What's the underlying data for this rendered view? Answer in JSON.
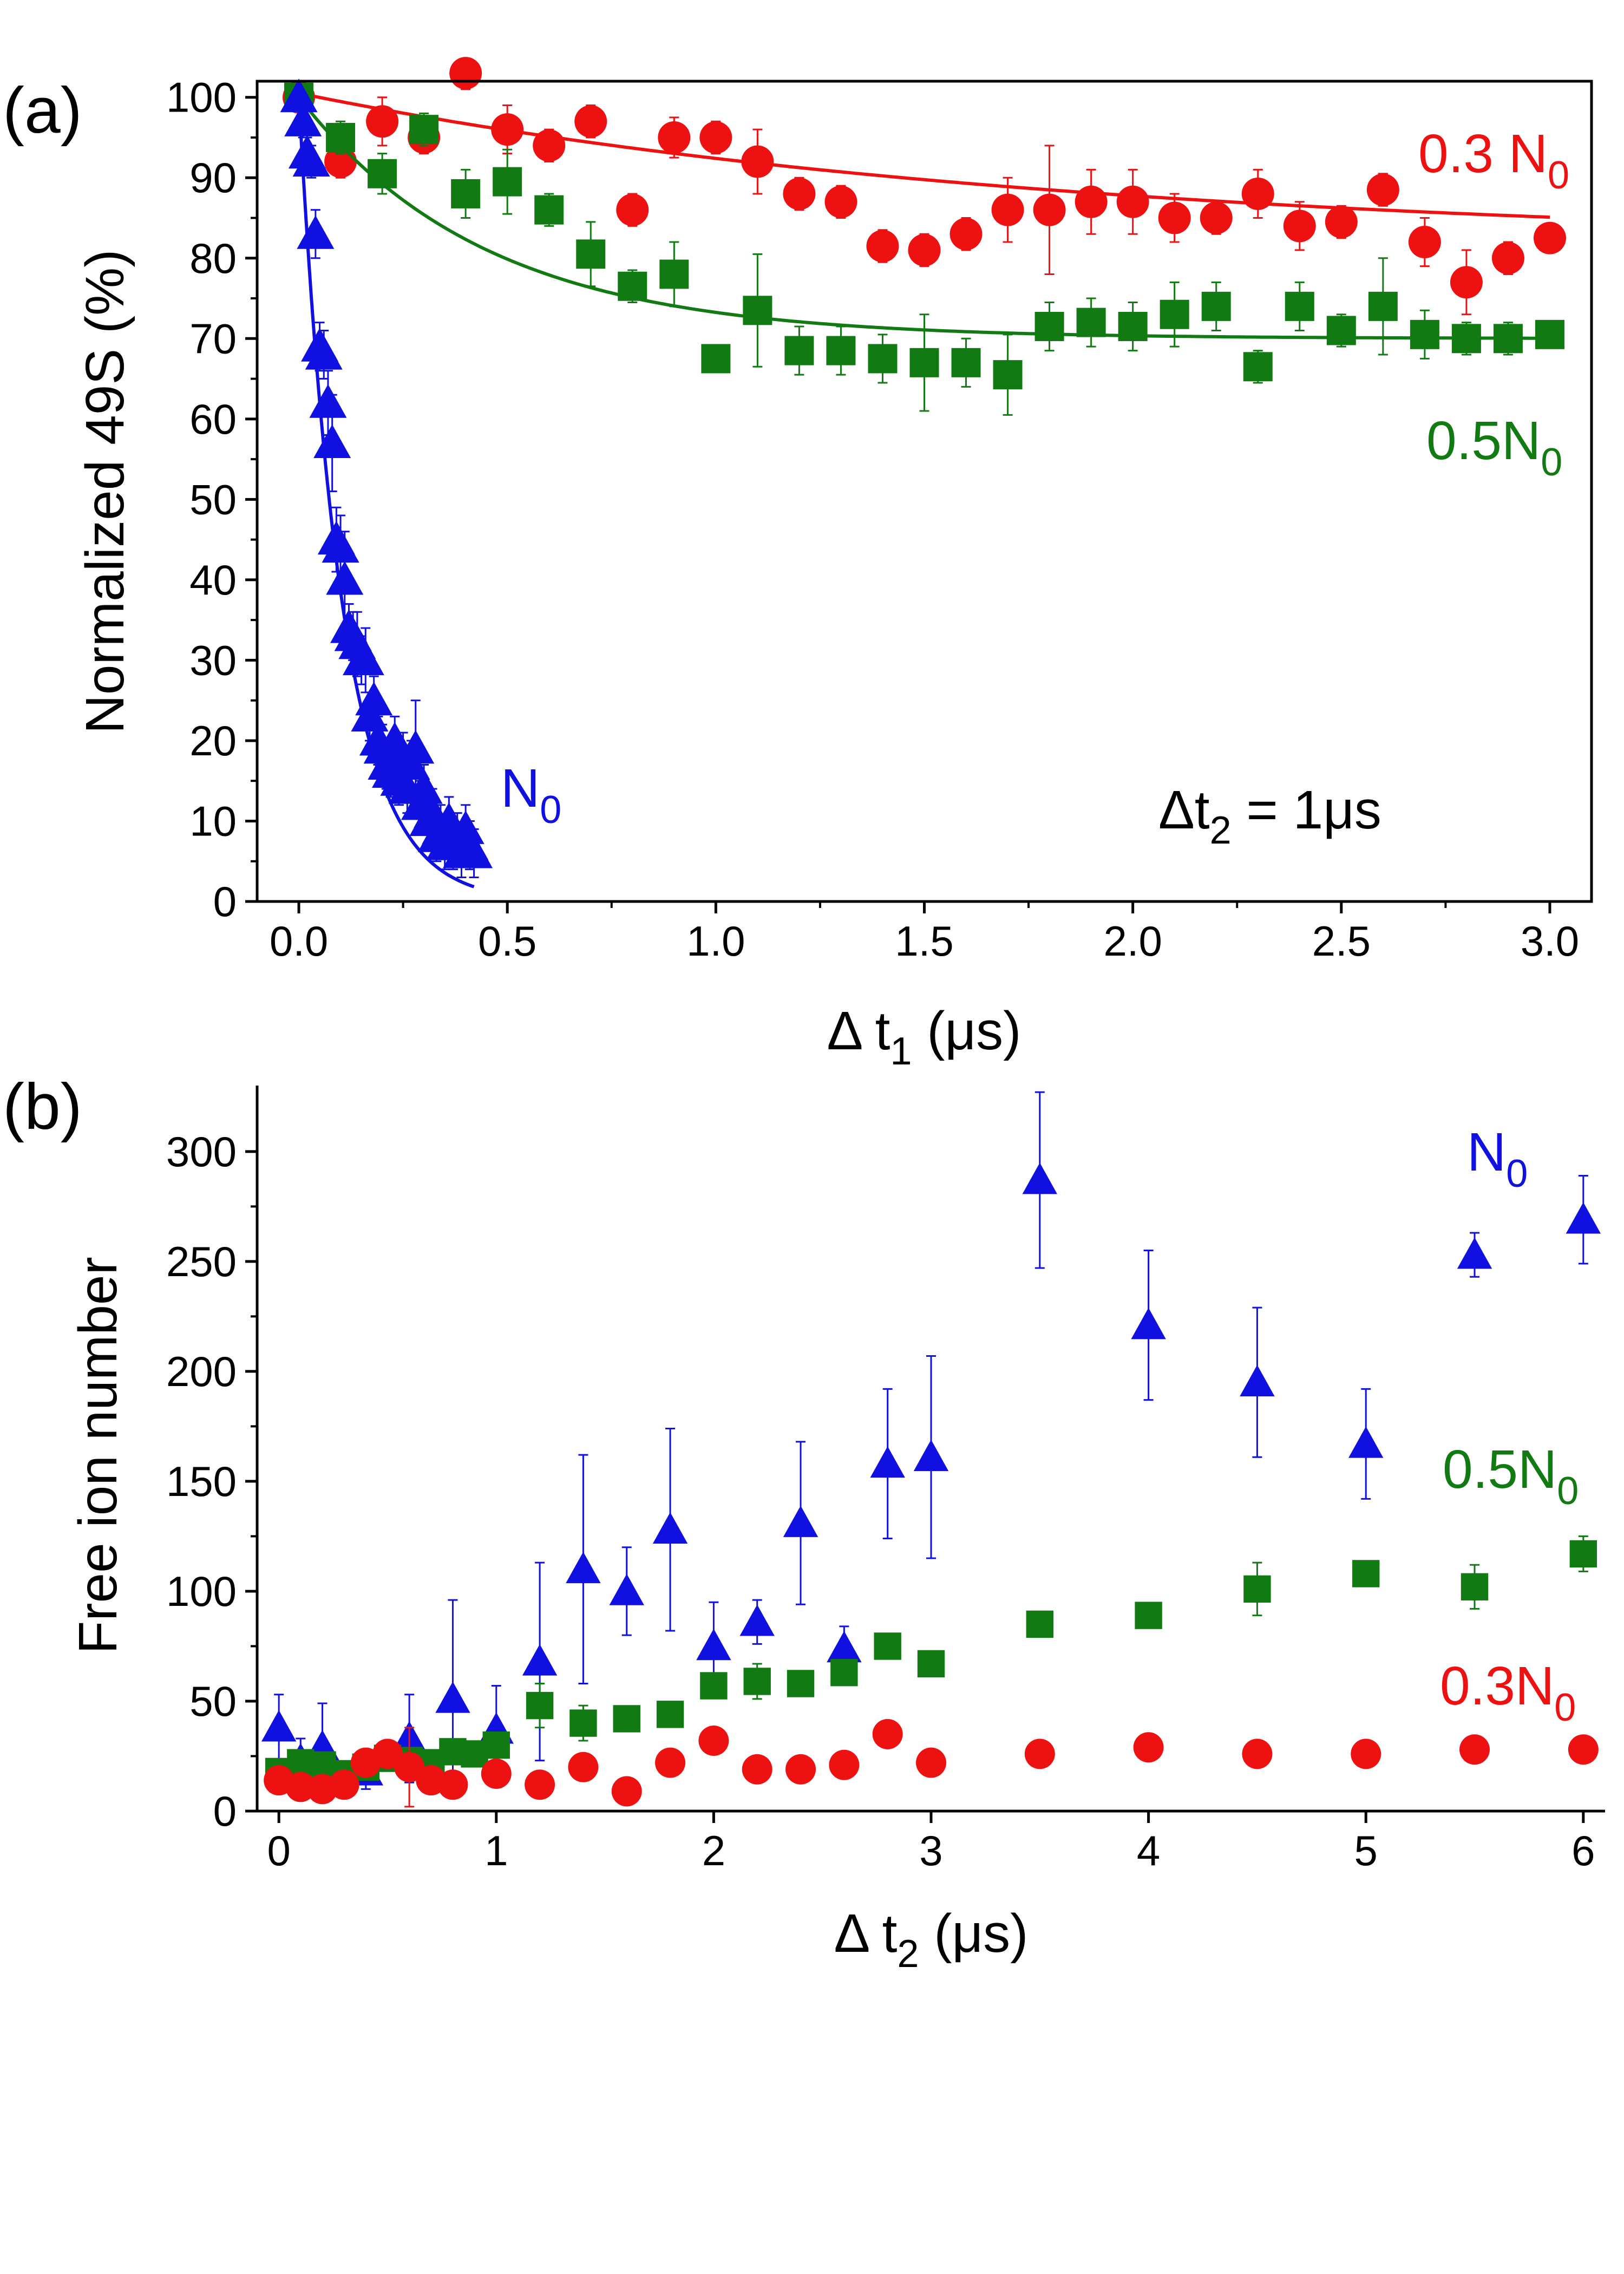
{
  "figure": {
    "panel_count": 2
  },
  "chart_data": [
    {
      "type": "scatter",
      "panel_label": "(a)",
      "xlabel_prefix": "Δ t",
      "xlabel_sub": "1",
      "xlabel_suffix": " (μs)",
      "ylabel": "Normalized 49S (%)",
      "xlim": [
        -0.1,
        3.1
      ],
      "ylim": [
        0,
        102
      ],
      "xticks": [
        0.0,
        0.5,
        1.0,
        1.5,
        2.0,
        2.5,
        3.0
      ],
      "xtick_labels": [
        "0.0",
        "0.5",
        "1.0",
        "1.5",
        "2.0",
        "2.5",
        "3.0"
      ],
      "yticks": [
        0,
        10,
        20,
        30,
        40,
        50,
        60,
        70,
        80,
        90,
        100
      ],
      "ytick_labels": [
        "0",
        "10",
        "20",
        "30",
        "40",
        "50",
        "60",
        "70",
        "80",
        "90",
        "100"
      ],
      "annotation": {
        "prefix": "Δt",
        "sub": "2",
        "suffix": " = 1μs"
      },
      "series": [
        {
          "name": "0.3 N0",
          "label_main": "0.3 N",
          "label_sub": "0",
          "color": "#ee1111",
          "marker": "circle",
          "x": [
            0.0,
            0.1,
            0.2,
            0.3,
            0.4,
            0.5,
            0.6,
            0.7,
            0.8,
            0.9,
            1.0,
            1.1,
            1.2,
            1.3,
            1.4,
            1.5,
            1.6,
            1.7,
            1.8,
            1.9,
            2.0,
            2.1,
            2.2,
            2.3,
            2.4,
            2.5,
            2.6,
            2.7,
            2.8,
            2.9,
            3.0
          ],
          "y": [
            100,
            92,
            97,
            95,
            103,
            96,
            94,
            97,
            86,
            95,
            95,
            92,
            88,
            87,
            81.5,
            81,
            83,
            86,
            86,
            87,
            87,
            85,
            85,
            88,
            84,
            84.5,
            88.5,
            82,
            77,
            80,
            82.5
          ],
          "err": [
            1,
            2,
            3,
            2,
            2,
            3,
            2,
            2,
            2,
            2.5,
            2,
            4,
            2,
            2,
            2,
            2,
            2,
            4,
            8,
            4,
            4,
            3,
            2,
            3,
            3,
            2,
            2,
            3,
            4,
            2,
            1
          ],
          "fit": {
            "a": 19,
            "tau": 1.8,
            "c": 81.5
          }
        },
        {
          "name": "0.5N0",
          "label_main": "0.5N",
          "label_sub": "0",
          "color": "#127a12",
          "marker": "square",
          "x": [
            0.0,
            0.1,
            0.2,
            0.3,
            0.4,
            0.5,
            0.6,
            0.7,
            0.8,
            0.9,
            1.0,
            1.1,
            1.2,
            1.3,
            1.4,
            1.5,
            1.6,
            1.7,
            1.8,
            1.9,
            2.0,
            2.1,
            2.2,
            2.3,
            2.4,
            2.5,
            2.6,
            2.7,
            2.8,
            2.9,
            3.0
          ],
          "y": [
            100,
            95,
            90.5,
            96,
            88,
            89.5,
            86,
            80.5,
            76.5,
            78,
            67.5,
            73.5,
            68.5,
            68.5,
            67.5,
            67,
            67,
            65.5,
            71.5,
            72,
            71.5,
            73,
            74,
            66.5,
            74,
            71,
            74,
            70.5,
            70,
            70,
            70.5
          ],
          "err": [
            1,
            2,
            2.5,
            2,
            3,
            4,
            2,
            4,
            2,
            4,
            1.5,
            7,
            3,
            3,
            3,
            6,
            3,
            5,
            3,
            3,
            3,
            4,
            3,
            2,
            3,
            2,
            6,
            3,
            2,
            2,
            1
          ],
          "fit": {
            "a": 30,
            "tau": 0.45,
            "c": 70
          }
        },
        {
          "name": "N0",
          "label_main": "N",
          "label_sub": "0",
          "color": "#1010e0",
          "marker": "triangle",
          "x": [
            0.0,
            0.01,
            0.02,
            0.03,
            0.04,
            0.05,
            0.06,
            0.07,
            0.08,
            0.09,
            0.1,
            0.11,
            0.12,
            0.13,
            0.14,
            0.15,
            0.16,
            0.17,
            0.18,
            0.19,
            0.2,
            0.21,
            0.22,
            0.23,
            0.24,
            0.25,
            0.26,
            0.27,
            0.28,
            0.29,
            0.3,
            0.31,
            0.32,
            0.33,
            0.34,
            0.35,
            0.36,
            0.37,
            0.38,
            0.39,
            0.4,
            0.41,
            0.42
          ],
          "y": [
            100,
            97,
            93,
            92,
            83,
            69,
            68,
            62,
            57,
            45,
            44,
            40,
            34,
            33,
            32,
            30,
            30,
            23,
            25,
            20,
            19,
            17,
            16,
            20,
            15,
            18,
            14,
            17,
            19,
            12,
            14,
            10,
            11,
            8,
            9,
            7,
            10,
            7,
            8,
            6,
            9,
            7,
            6
          ],
          "err": [
            1,
            2,
            2,
            2,
            3,
            3,
            3,
            4,
            6,
            4,
            4,
            6,
            3,
            3,
            4,
            3,
            4,
            3,
            3,
            3,
            3,
            3,
            3,
            3,
            3,
            3,
            3,
            3,
            6,
            3,
            3,
            3,
            3,
            3,
            3,
            3,
            3,
            3,
            3,
            3,
            3,
            3,
            3
          ],
          "fit": {
            "a": 100,
            "tau": 0.105,
            "c": 0
          }
        }
      ]
    },
    {
      "type": "scatter",
      "panel_label": "(b)",
      "xlabel_prefix": "Δ t",
      "xlabel_sub": "2",
      "xlabel_suffix": " (μs)",
      "ylabel": "Free ion number",
      "xlim": [
        -0.1,
        6.1
      ],
      "ylim": [
        0,
        330
      ],
      "xticks": [
        0,
        1,
        2,
        3,
        4,
        5,
        6
      ],
      "xtick_labels": [
        "0",
        "1",
        "2",
        "3",
        "4",
        "5",
        "6"
      ],
      "yticks": [
        0,
        50,
        100,
        150,
        200,
        250,
        300
      ],
      "ytick_labels": [
        "0",
        "50",
        "100",
        "150",
        "200",
        "250",
        "300"
      ],
      "series": [
        {
          "name": "N0",
          "label_main": "N",
          "label_sub": "0",
          "color": "#1010e0",
          "marker": "triangle",
          "x": [
            0.0,
            0.1,
            0.2,
            0.4,
            0.6,
            0.8,
            1.0,
            1.2,
            1.4,
            1.6,
            1.8,
            2.0,
            2.2,
            2.4,
            2.6,
            2.8,
            3.0,
            3.5,
            4.0,
            4.5,
            5.0,
            5.5,
            6.0
          ],
          "y": [
            38,
            23,
            29,
            18,
            33,
            51,
            37,
            68,
            110,
            100,
            128,
            75,
            86,
            131,
            74,
            158,
            161,
            287,
            221,
            195,
            167,
            253,
            269
          ],
          "err": [
            15,
            10,
            20,
            8,
            20,
            45,
            20,
            45,
            52,
            20,
            46,
            20,
            10,
            37,
            10,
            34,
            46,
            40,
            34,
            34,
            25,
            10,
            20
          ]
        },
        {
          "name": "0.5N0",
          "label_main": "0.5N",
          "label_sub": "0",
          "color": "#127a12",
          "marker": "square",
          "x": [
            0.0,
            0.1,
            0.2,
            0.3,
            0.4,
            0.5,
            0.6,
            0.7,
            0.8,
            0.9,
            1.0,
            1.2,
            1.4,
            1.6,
            1.8,
            2.0,
            2.2,
            2.4,
            2.6,
            2.8,
            3.0,
            3.5,
            4.0,
            4.5,
            5.0,
            5.5,
            6.0
          ],
          "y": [
            18,
            22,
            21,
            17,
            20,
            24,
            23,
            22,
            27,
            26,
            30,
            48,
            40,
            42,
            44,
            57,
            59,
            58,
            63,
            75,
            67,
            85,
            89,
            101,
            108,
            102,
            117
          ],
          "err": [
            5,
            5,
            5,
            5,
            5,
            5,
            5,
            5,
            5,
            5,
            5,
            10,
            8,
            5,
            5,
            5,
            8,
            5,
            5,
            5,
            5,
            5,
            5,
            12,
            5,
            10,
            8
          ]
        },
        {
          "name": "0.3N0",
          "label_main": "0.3N",
          "label_sub": "0",
          "color": "#ee1111",
          "marker": "circle",
          "x": [
            0.0,
            0.1,
            0.2,
            0.3,
            0.4,
            0.5,
            0.6,
            0.7,
            0.8,
            1.0,
            1.2,
            1.4,
            1.6,
            1.8,
            2.0,
            2.2,
            2.4,
            2.6,
            2.8,
            3.0,
            3.5,
            4.0,
            4.5,
            5.0,
            5.5,
            6.0
          ],
          "y": [
            14,
            11,
            10,
            12,
            22,
            26,
            20,
            14,
            12,
            17,
            12,
            20,
            9,
            22,
            32,
            19,
            19,
            21,
            35,
            22,
            26,
            29,
            26,
            26,
            28,
            28
          ],
          "err": [
            5,
            5,
            5,
            5,
            5,
            5,
            18,
            5,
            5,
            5,
            5,
            5,
            5,
            5,
            5,
            5,
            5,
            5,
            5,
            5,
            5,
            5,
            5,
            5,
            5,
            5
          ]
        }
      ]
    }
  ]
}
